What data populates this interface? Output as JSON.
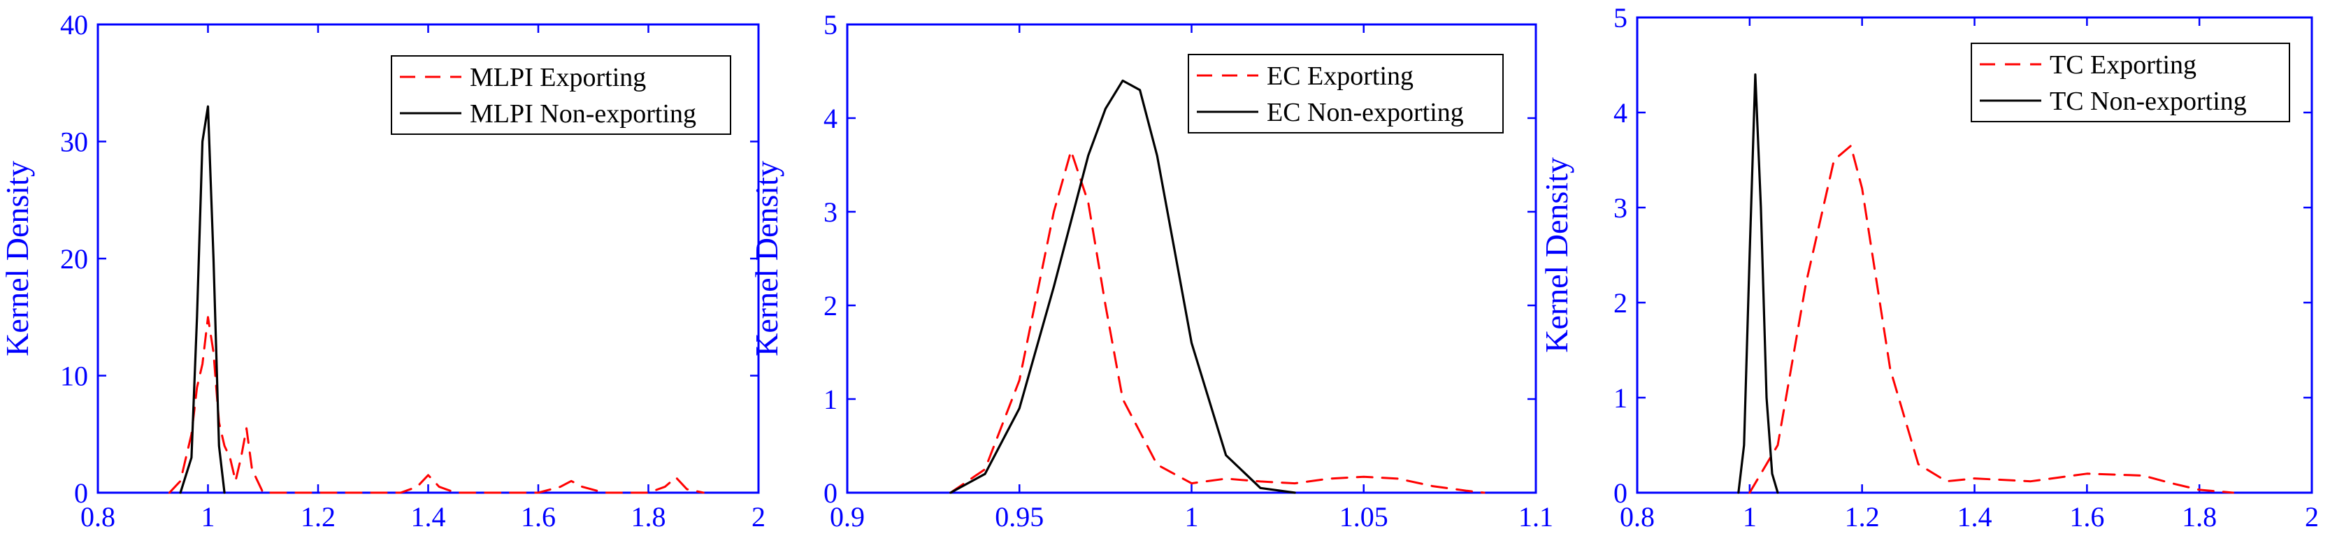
{
  "chart_data": [
    {
      "type": "line",
      "ylabel": "Kernel Density",
      "xlim": [
        0.8,
        2
      ],
      "ylim": [
        0,
        40
      ],
      "xticks": [
        "0.8",
        "1",
        "1.2",
        "1.4",
        "1.6",
        "1.8",
        "2"
      ],
      "yticks": [
        "0",
        "10",
        "20",
        "30",
        "40"
      ],
      "grid": false,
      "legend_position": "top-right",
      "series": [
        {
          "name": "MLPI Exporting",
          "color": "#ff0000",
          "style": "dashed",
          "x": [
            0.93,
            0.95,
            0.97,
            0.98,
            0.99,
            1.0,
            1.01,
            1.02,
            1.03,
            1.04,
            1.05,
            1.06,
            1.07,
            1.08,
            1.1,
            1.2,
            1.35,
            1.38,
            1.4,
            1.42,
            1.45,
            1.6,
            1.64,
            1.66,
            1.68,
            1.72,
            1.8,
            1.83,
            1.85,
            1.87,
            1.9
          ],
          "y": [
            0,
            1,
            5,
            9,
            11,
            15,
            12,
            6,
            4,
            3,
            1,
            3,
            5.5,
            2,
            0,
            0,
            0,
            0.5,
            1.5,
            0.5,
            0,
            0,
            0.5,
            1,
            0.5,
            0,
            0,
            0.5,
            1.3,
            0.3,
            0
          ]
        },
        {
          "name": "MLPI Non-exporting",
          "color": "#000000",
          "style": "solid",
          "x": [
            0.95,
            0.97,
            0.98,
            0.99,
            1.0,
            1.01,
            1.02,
            1.03
          ],
          "y": [
            0,
            3,
            15,
            30,
            33,
            20,
            4,
            0
          ]
        }
      ]
    },
    {
      "type": "line",
      "ylabel": "Kernel Density",
      "xlim": [
        0.9,
        1.1
      ],
      "ylim": [
        0,
        5
      ],
      "xticks": [
        "0.9",
        "0.95",
        "1",
        "1.05",
        "1.1"
      ],
      "yticks": [
        "0",
        "1",
        "2",
        "3",
        "4",
        "5"
      ],
      "grid": false,
      "legend_position": "top-right",
      "series": [
        {
          "name": "EC Exporting",
          "color": "#ff0000",
          "style": "dashed",
          "x": [
            0.93,
            0.94,
            0.95,
            0.96,
            0.965,
            0.97,
            0.975,
            0.98,
            0.99,
            1.0,
            1.01,
            1.02,
            1.03,
            1.04,
            1.05,
            1.06,
            1.07,
            1.08,
            1.085
          ],
          "y": [
            0,
            0.25,
            1.2,
            3.0,
            3.65,
            3.1,
            2.0,
            1.0,
            0.3,
            0.1,
            0.15,
            0.12,
            0.1,
            0.15,
            0.17,
            0.15,
            0.07,
            0.02,
            0
          ]
        },
        {
          "name": "EC Non-exporting",
          "color": "#000000",
          "style": "solid",
          "x": [
            0.93,
            0.94,
            0.95,
            0.96,
            0.97,
            0.975,
            0.98,
            0.985,
            0.99,
            0.995,
            1.0,
            1.01,
            1.02,
            1.03
          ],
          "y": [
            0,
            0.2,
            0.9,
            2.2,
            3.6,
            4.1,
            4.4,
            4.3,
            3.6,
            2.6,
            1.6,
            0.4,
            0.05,
            0
          ]
        }
      ]
    },
    {
      "type": "line",
      "ylabel": "Kernel Density",
      "xlim": [
        0.8,
        2
      ],
      "ylim": [
        0,
        5
      ],
      "xticks": [
        "0.8",
        "1",
        "1.2",
        "1.4",
        "1.6",
        "1.8",
        "2"
      ],
      "yticks": [
        "0",
        "1",
        "2",
        "3",
        "4",
        "5"
      ],
      "grid": false,
      "legend_position": "top-right",
      "series": [
        {
          "name": "TC Exporting",
          "color": "#ff0000",
          "style": "dashed",
          "x": [
            1.0,
            1.05,
            1.1,
            1.15,
            1.18,
            1.2,
            1.25,
            1.3,
            1.35,
            1.4,
            1.5,
            1.6,
            1.7,
            1.75,
            1.8,
            1.86
          ],
          "y": [
            0,
            0.5,
            2.2,
            3.5,
            3.65,
            3.2,
            1.3,
            0.3,
            0.12,
            0.15,
            0.12,
            0.2,
            0.18,
            0.1,
            0.03,
            0
          ]
        },
        {
          "name": "TC Non-exporting",
          "color": "#000000",
          "style": "solid",
          "x": [
            0.98,
            0.99,
            1.0,
            1.01,
            1.02,
            1.03,
            1.04,
            1.05
          ],
          "y": [
            0,
            0.5,
            2.5,
            4.4,
            3.0,
            1.0,
            0.2,
            0
          ]
        }
      ]
    }
  ]
}
